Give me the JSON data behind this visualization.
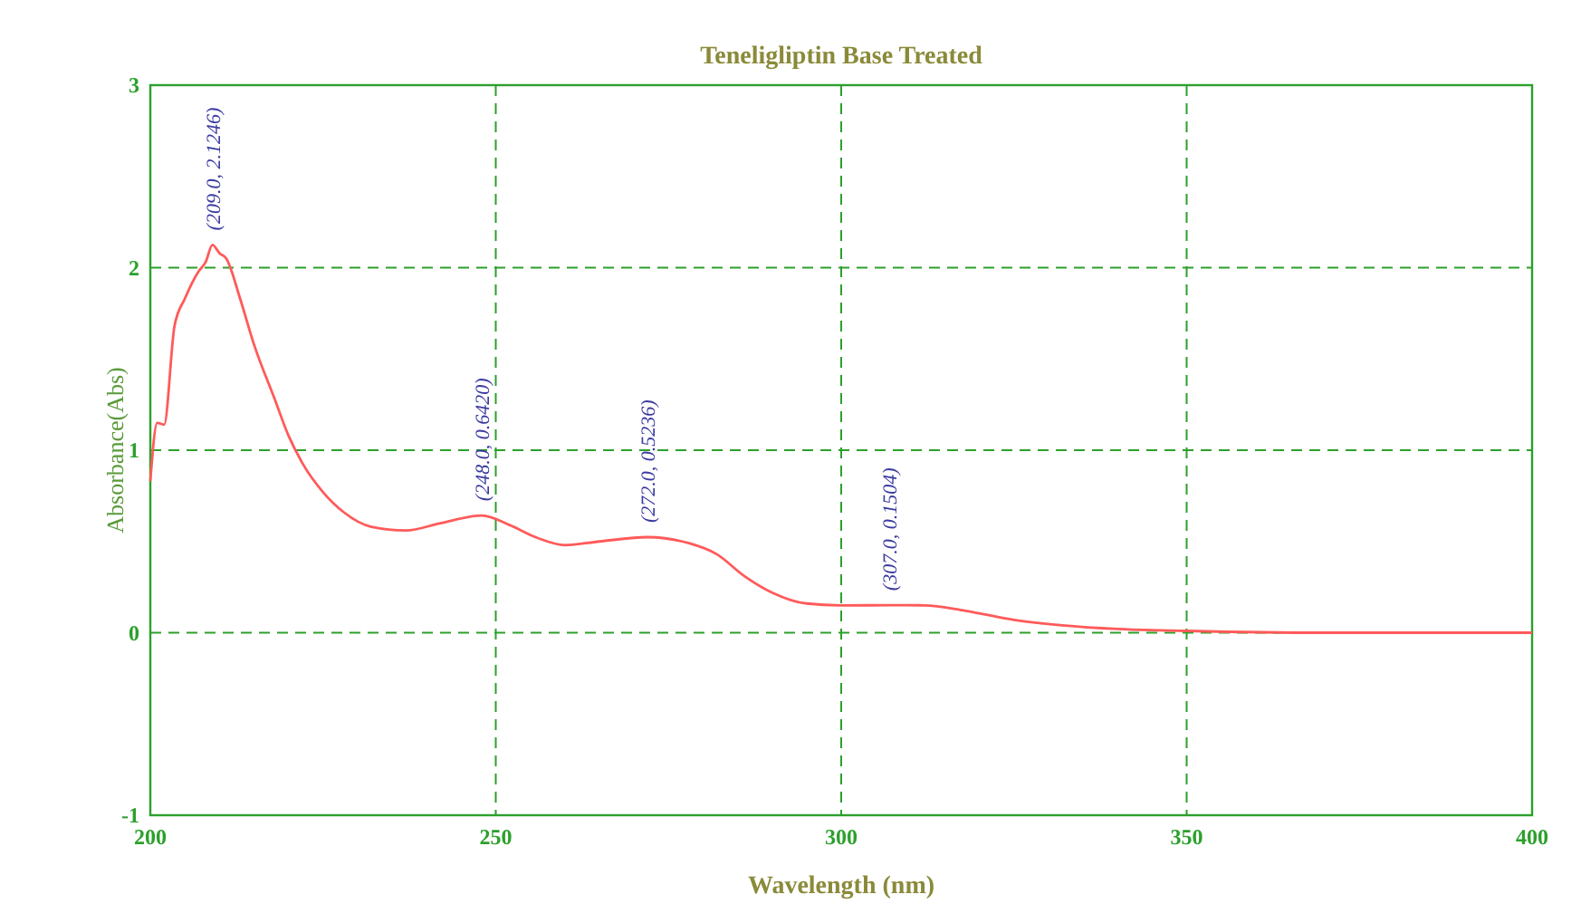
{
  "chart_data": {
    "type": "line",
    "title": "Teneligliptin Base Treated",
    "xlabel": "Wavelength (nm)",
    "ylabel": "Absorbance(Abs)",
    "series": [
      {
        "color": "#ff5a5a",
        "x": [
          200,
          201,
          202,
          203.5,
          205,
          207,
          208,
          209,
          210,
          211,
          213,
          215,
          218,
          220,
          222,
          225,
          228,
          232,
          237,
          242,
          248,
          252,
          256,
          260,
          265,
          272,
          277,
          282,
          286,
          290,
          295,
          300,
          307,
          312,
          318,
          325,
          332,
          340,
          350,
          370,
          400
        ],
        "values": [
          0.83,
          1.15,
          1.14,
          1.68,
          1.83,
          1.98,
          2.03,
          2.1246,
          2.08,
          2.05,
          1.83,
          1.58,
          1.28,
          1.08,
          0.93,
          0.77,
          0.66,
          0.58,
          0.56,
          0.6,
          0.642,
          0.59,
          0.52,
          0.48,
          0.5,
          0.5236,
          0.5,
          0.43,
          0.31,
          0.22,
          0.16,
          0.15,
          0.1504,
          0.15,
          0.12,
          0.07,
          0.04,
          0.02,
          0.01,
          0.0,
          0.0
        ]
      }
    ],
    "annotations": [
      {
        "text": "(209.0,  2.1246)",
        "x": 209,
        "y": 2.1246
      },
      {
        "text": "(248.0,  0.6420)",
        "x": 248,
        "y": 0.642
      },
      {
        "text": "(272.0,  0.5236)",
        "x": 272,
        "y": 0.5236
      },
      {
        "text": "(307.0,  0.1504)",
        "x": 307,
        "y": 0.1504
      }
    ],
    "xlim": [
      200,
      400
    ],
    "xticks": [
      200,
      250,
      300,
      350,
      400
    ],
    "ylim": [
      -1,
      3
    ],
    "yticks": [
      -1,
      0,
      1,
      2,
      3
    ],
    "grid": true,
    "marker": "none",
    "line_style": "solid"
  }
}
